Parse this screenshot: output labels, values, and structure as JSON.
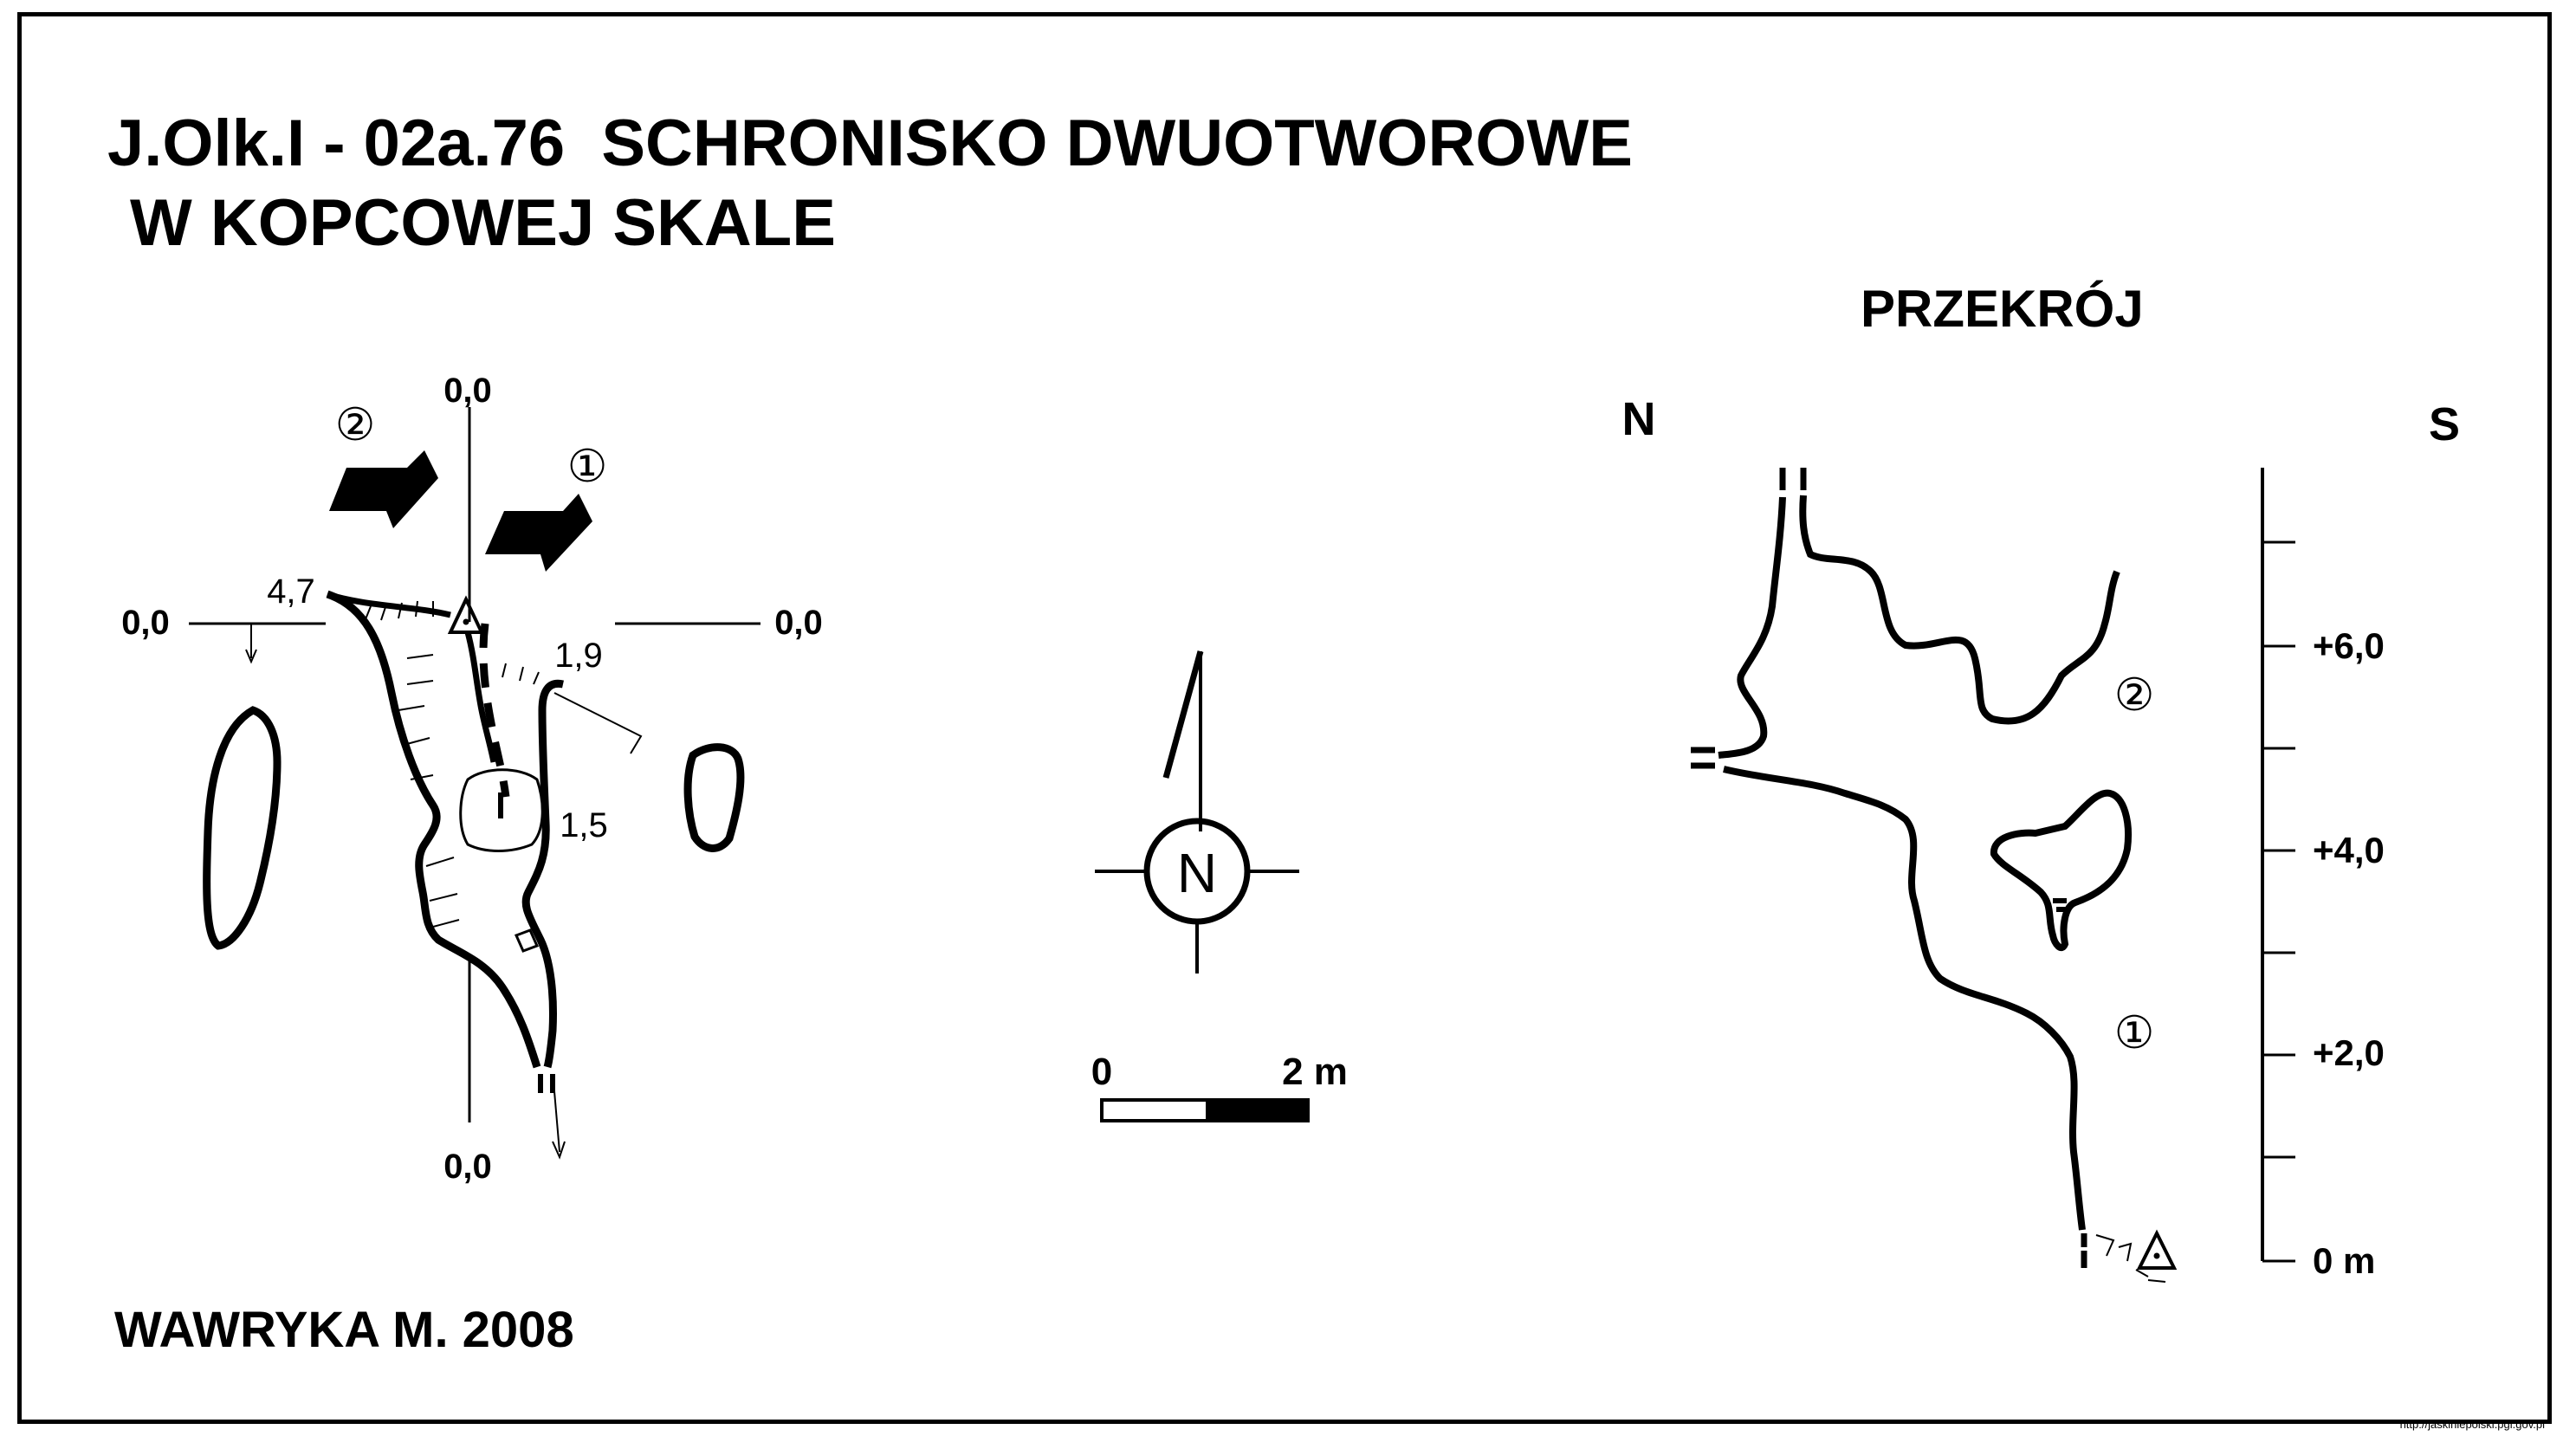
{
  "title": {
    "line1": "J.Olk.I - 02a.76  SCHRONISKO DWUOTWOROWE",
    "line2": "W KOPCOWEJ SKALE"
  },
  "section": {
    "title": "PRZEKRÓJ",
    "north": "N",
    "south": "S",
    "entrance_2": "②",
    "entrance_1": "①",
    "scale_labels": [
      "+6,0",
      "+4,0",
      "+2,0",
      "0 m"
    ]
  },
  "plan": {
    "top_datum": "0,0",
    "bottom_datum": "0,0",
    "left_datum": "0,0",
    "right_datum": "0,0",
    "depth_1": "4,7",
    "depth_2": "1,9",
    "depth_3": "1,5",
    "entrance_2": "②",
    "entrance_1": "①"
  },
  "compass": {
    "label": "N"
  },
  "scale_bar": {
    "start": "0",
    "end": "2 m"
  },
  "author": "WAWRYKA M. 2008",
  "credit": "http://jaskiniepolski.pgi.gov.pl"
}
